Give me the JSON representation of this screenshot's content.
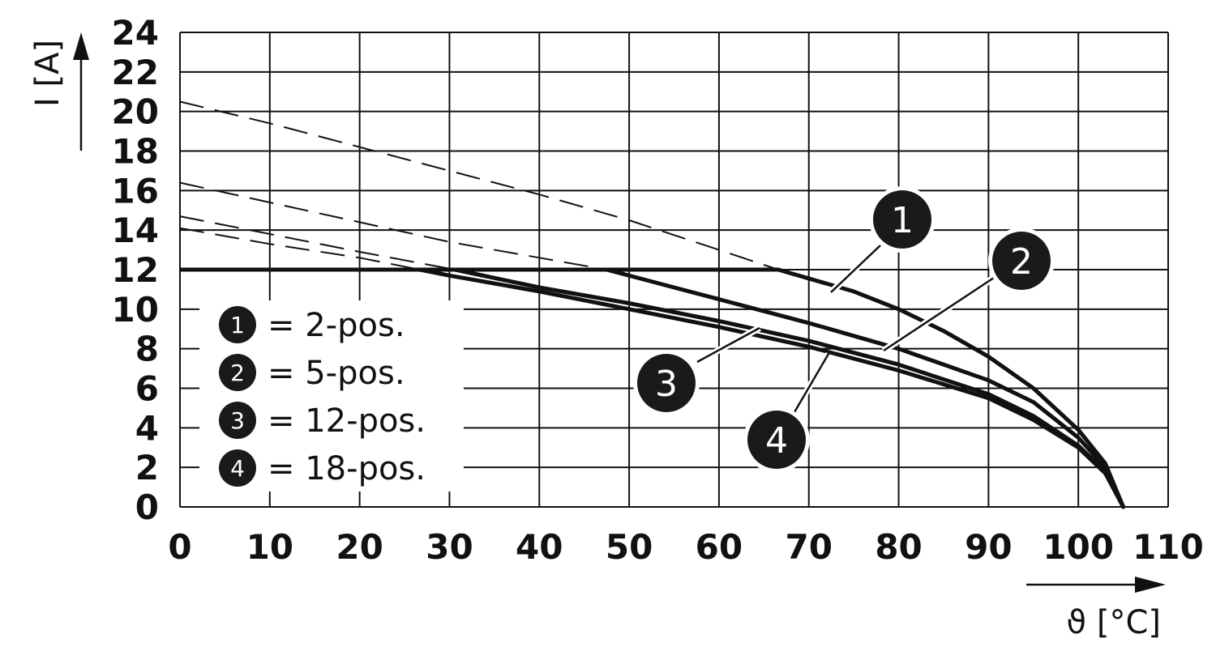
{
  "chart_data": {
    "type": "line",
    "title": "",
    "xlabel": "ϑ [°C]",
    "ylabel": "I [A]",
    "xlim": [
      0,
      110
    ],
    "ylim": [
      0,
      24
    ],
    "x_ticks": [
      0,
      10,
      20,
      30,
      40,
      50,
      60,
      70,
      80,
      90,
      100,
      110
    ],
    "y_ticks": [
      0,
      2,
      4,
      6,
      8,
      10,
      12,
      14,
      16,
      18,
      20,
      22,
      24
    ],
    "grid": true,
    "legend_position": "bottom-left",
    "current_limit": 12,
    "max_temperature": 105,
    "series": [
      {
        "badge": "1",
        "legend_label": "= 2-pos.",
        "dashed": {
          "x": [
            0,
            10,
            20,
            30,
            40,
            50,
            60,
            66.6
          ],
          "y": [
            20.5,
            19.4,
            18.2,
            17.0,
            15.8,
            14.5,
            13.0,
            12.0
          ]
        },
        "solid": {
          "x": [
            66.6,
            75,
            80,
            85,
            90,
            95,
            100,
            103,
            105
          ],
          "y": [
            12.0,
            10.9,
            10.0,
            8.9,
            7.6,
            6.0,
            3.9,
            2.2,
            0
          ]
        }
      },
      {
        "badge": "2",
        "legend_label": "= 5-pos.",
        "dashed": {
          "x": [
            0,
            10,
            20,
            30,
            40,
            47.5
          ],
          "y": [
            16.4,
            15.4,
            14.4,
            13.4,
            12.6,
            12.0
          ]
        },
        "solid": {
          "x": [
            47.5,
            55,
            60,
            70,
            80,
            90,
            95,
            100,
            103,
            105
          ],
          "y": [
            12.0,
            11.1,
            10.5,
            9.3,
            8.0,
            6.4,
            5.3,
            3.5,
            2.0,
            0
          ]
        }
      },
      {
        "badge": "3",
        "legend_label": "= 12-pos.",
        "dashed": {
          "x": [
            0,
            10,
            20,
            30.6
          ],
          "y": [
            14.7,
            13.8,
            12.9,
            12.0
          ]
        },
        "solid": {
          "x": [
            30.6,
            40,
            50,
            60,
            70,
            80,
            90,
            95,
            100,
            103,
            105
          ],
          "y": [
            12.0,
            11.1,
            10.3,
            9.4,
            8.4,
            7.2,
            5.7,
            4.6,
            3.1,
            1.8,
            0
          ]
        }
      },
      {
        "badge": "4",
        "legend_label": "= 18-pos.",
        "dashed": {
          "x": [
            0,
            10,
            20,
            26.7
          ],
          "y": [
            14.1,
            13.3,
            12.6,
            12.0
          ]
        },
        "solid": {
          "x": [
            26.7,
            30,
            40,
            50,
            60,
            70,
            80,
            90,
            95,
            100,
            103,
            105
          ],
          "y": [
            12.0,
            11.7,
            10.9,
            10.0,
            9.1,
            8.1,
            6.9,
            5.5,
            4.4,
            3.0,
            1.7,
            0
          ]
        }
      }
    ]
  }
}
